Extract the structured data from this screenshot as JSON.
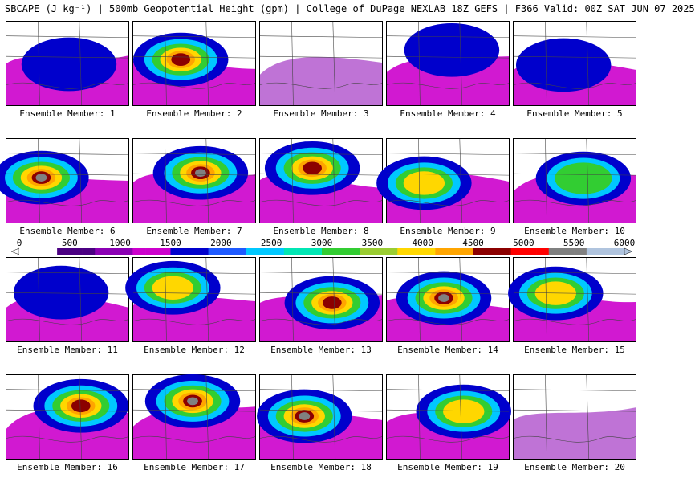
{
  "header": {
    "title": "SBCAPE (J kg⁻¹) | 500mb Geopotential Height (gpm) | College of DuPage NEXLAB 18Z GEFS | F366 Valid: 00Z SAT JUN 07 2025"
  },
  "colorbar": {
    "ticks": [
      "0",
      "500",
      "1000",
      "1500",
      "2000",
      "2500",
      "3000",
      "3500",
      "4000",
      "4500",
      "5000",
      "5500",
      "6000"
    ],
    "colors": [
      "#ffffff",
      "#4b0082",
      "#8b00b4",
      "#cc00cc",
      "#0000cc",
      "#1e5aff",
      "#00c8ff",
      "#00e6b4",
      "#32cd32",
      "#9acd32",
      "#ffd700",
      "#ffa500",
      "#8b0000",
      "#ff0000",
      "#808080",
      "#b0c4de"
    ]
  },
  "panels": [
    {
      "caption": "Ensemble Member: 1",
      "level": 1
    },
    {
      "caption": "Ensemble Member: 2",
      "level": 4
    },
    {
      "caption": "Ensemble Member: 3",
      "level": 0
    },
    {
      "caption": "Ensemble Member: 4",
      "level": 1
    },
    {
      "caption": "Ensemble Member: 5",
      "level": 1
    },
    {
      "caption": "Ensemble Member: 6",
      "level": 5
    },
    {
      "caption": "Ensemble Member: 7",
      "level": 5
    },
    {
      "caption": "Ensemble Member: 8",
      "level": 4
    },
    {
      "caption": "Ensemble Member: 9",
      "level": 3
    },
    {
      "caption": "Ensemble Member: 10",
      "level": 2
    },
    {
      "caption": "Ensemble Member: 11",
      "level": 1
    },
    {
      "caption": "Ensemble Member: 12",
      "level": 3
    },
    {
      "caption": "Ensemble Member: 13",
      "level": 4
    },
    {
      "caption": "Ensemble Member: 14",
      "level": 5
    },
    {
      "caption": "Ensemble Member: 15",
      "level": 3
    },
    {
      "caption": "Ensemble Member: 16",
      "level": 4
    },
    {
      "caption": "Ensemble Member: 17",
      "level": 5
    },
    {
      "caption": "Ensemble Member: 18",
      "level": 5
    },
    {
      "caption": "Ensemble Member: 19",
      "level": 3
    },
    {
      "caption": "Ensemble Member: 20",
      "level": 0
    }
  ]
}
